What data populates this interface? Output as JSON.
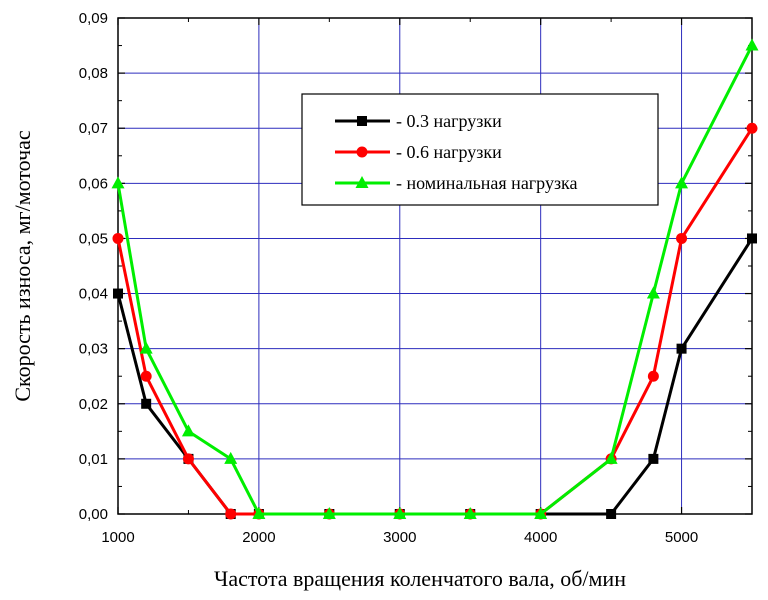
{
  "chart_data": {
    "type": "line",
    "title": "",
    "xlabel": "Частота вращения коленчатого вала, об/мин",
    "ylabel": "Скорость износа, мг/моточас",
    "xlim": [
      1000,
      5500
    ],
    "ylim": [
      0,
      0.09
    ],
    "xticks": [
      1000,
      2000,
      3000,
      4000,
      5000
    ],
    "yticks": [
      "0,00",
      "0,01",
      "0,02",
      "0,03",
      "0,04",
      "0,05",
      "0,06",
      "0,07",
      "0,08",
      "0,09"
    ],
    "grid": true,
    "legend_position": "top-right",
    "series": [
      {
        "name": "- 0.3 нагрузки",
        "color": "#000000",
        "marker": "square",
        "points": [
          [
            1000,
            0.04
          ],
          [
            1200,
            0.02
          ],
          [
            1500,
            0.01
          ],
          [
            1800,
            0.0
          ],
          [
            2000,
            0.0
          ],
          [
            2500,
            0.0
          ],
          [
            3000,
            0.0
          ],
          [
            3500,
            0.0
          ],
          [
            4000,
            0.0
          ],
          [
            4500,
            0.0
          ],
          [
            4800,
            0.01
          ],
          [
            5000,
            0.03
          ],
          [
            5500,
            0.05
          ]
        ]
      },
      {
        "name": "- 0.6 нагрузки",
        "color": "#ff0000",
        "marker": "circle",
        "points": [
          [
            1000,
            0.05
          ],
          [
            1200,
            0.025
          ],
          [
            1500,
            0.01
          ],
          [
            1800,
            0.0
          ],
          [
            2000,
            0.0
          ],
          [
            2500,
            0.0
          ],
          [
            3000,
            0.0
          ],
          [
            3500,
            0.0
          ],
          [
            4000,
            0.0
          ],
          [
            4500,
            0.01
          ],
          [
            4800,
            0.025
          ],
          [
            5000,
            0.05
          ],
          [
            5500,
            0.07
          ]
        ]
      },
      {
        "name": "- номинальная нагрузка",
        "color": "#00ee00",
        "marker": "triangle",
        "points": [
          [
            1000,
            0.06
          ],
          [
            1200,
            0.03
          ],
          [
            1500,
            0.015
          ],
          [
            1800,
            0.01
          ],
          [
            2000,
            0.0
          ],
          [
            2500,
            0.0
          ],
          [
            3000,
            0.0
          ],
          [
            3500,
            0.0
          ],
          [
            4000,
            0.0
          ],
          [
            4500,
            0.01
          ],
          [
            4800,
            0.04
          ],
          [
            5000,
            0.06
          ],
          [
            5500,
            0.085
          ]
        ]
      }
    ]
  }
}
